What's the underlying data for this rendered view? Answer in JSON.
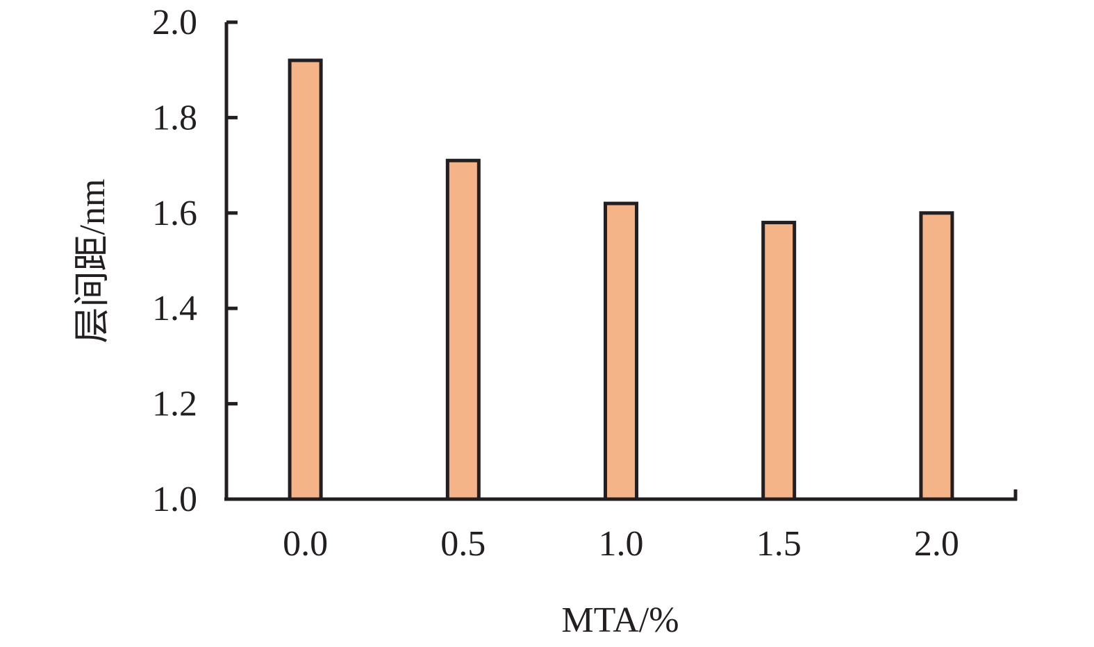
{
  "chart_data": {
    "type": "bar",
    "xlabel": "MTA/%",
    "ylabel": "层间距/nm",
    "categories": [
      "0.0",
      "0.5",
      "1.0",
      "1.5",
      "2.0"
    ],
    "values": [
      1.92,
      1.71,
      1.62,
      1.58,
      1.6
    ],
    "ylim": [
      1.0,
      2.0
    ],
    "yticks": [
      "1.0",
      "1.2",
      "1.4",
      "1.6",
      "1.8",
      "2.0"
    ],
    "grid": false,
    "legend": "none",
    "colors": {
      "bar_fill": "#f5b488",
      "bar_stroke": "#231f20",
      "axis": "#231f20"
    }
  }
}
